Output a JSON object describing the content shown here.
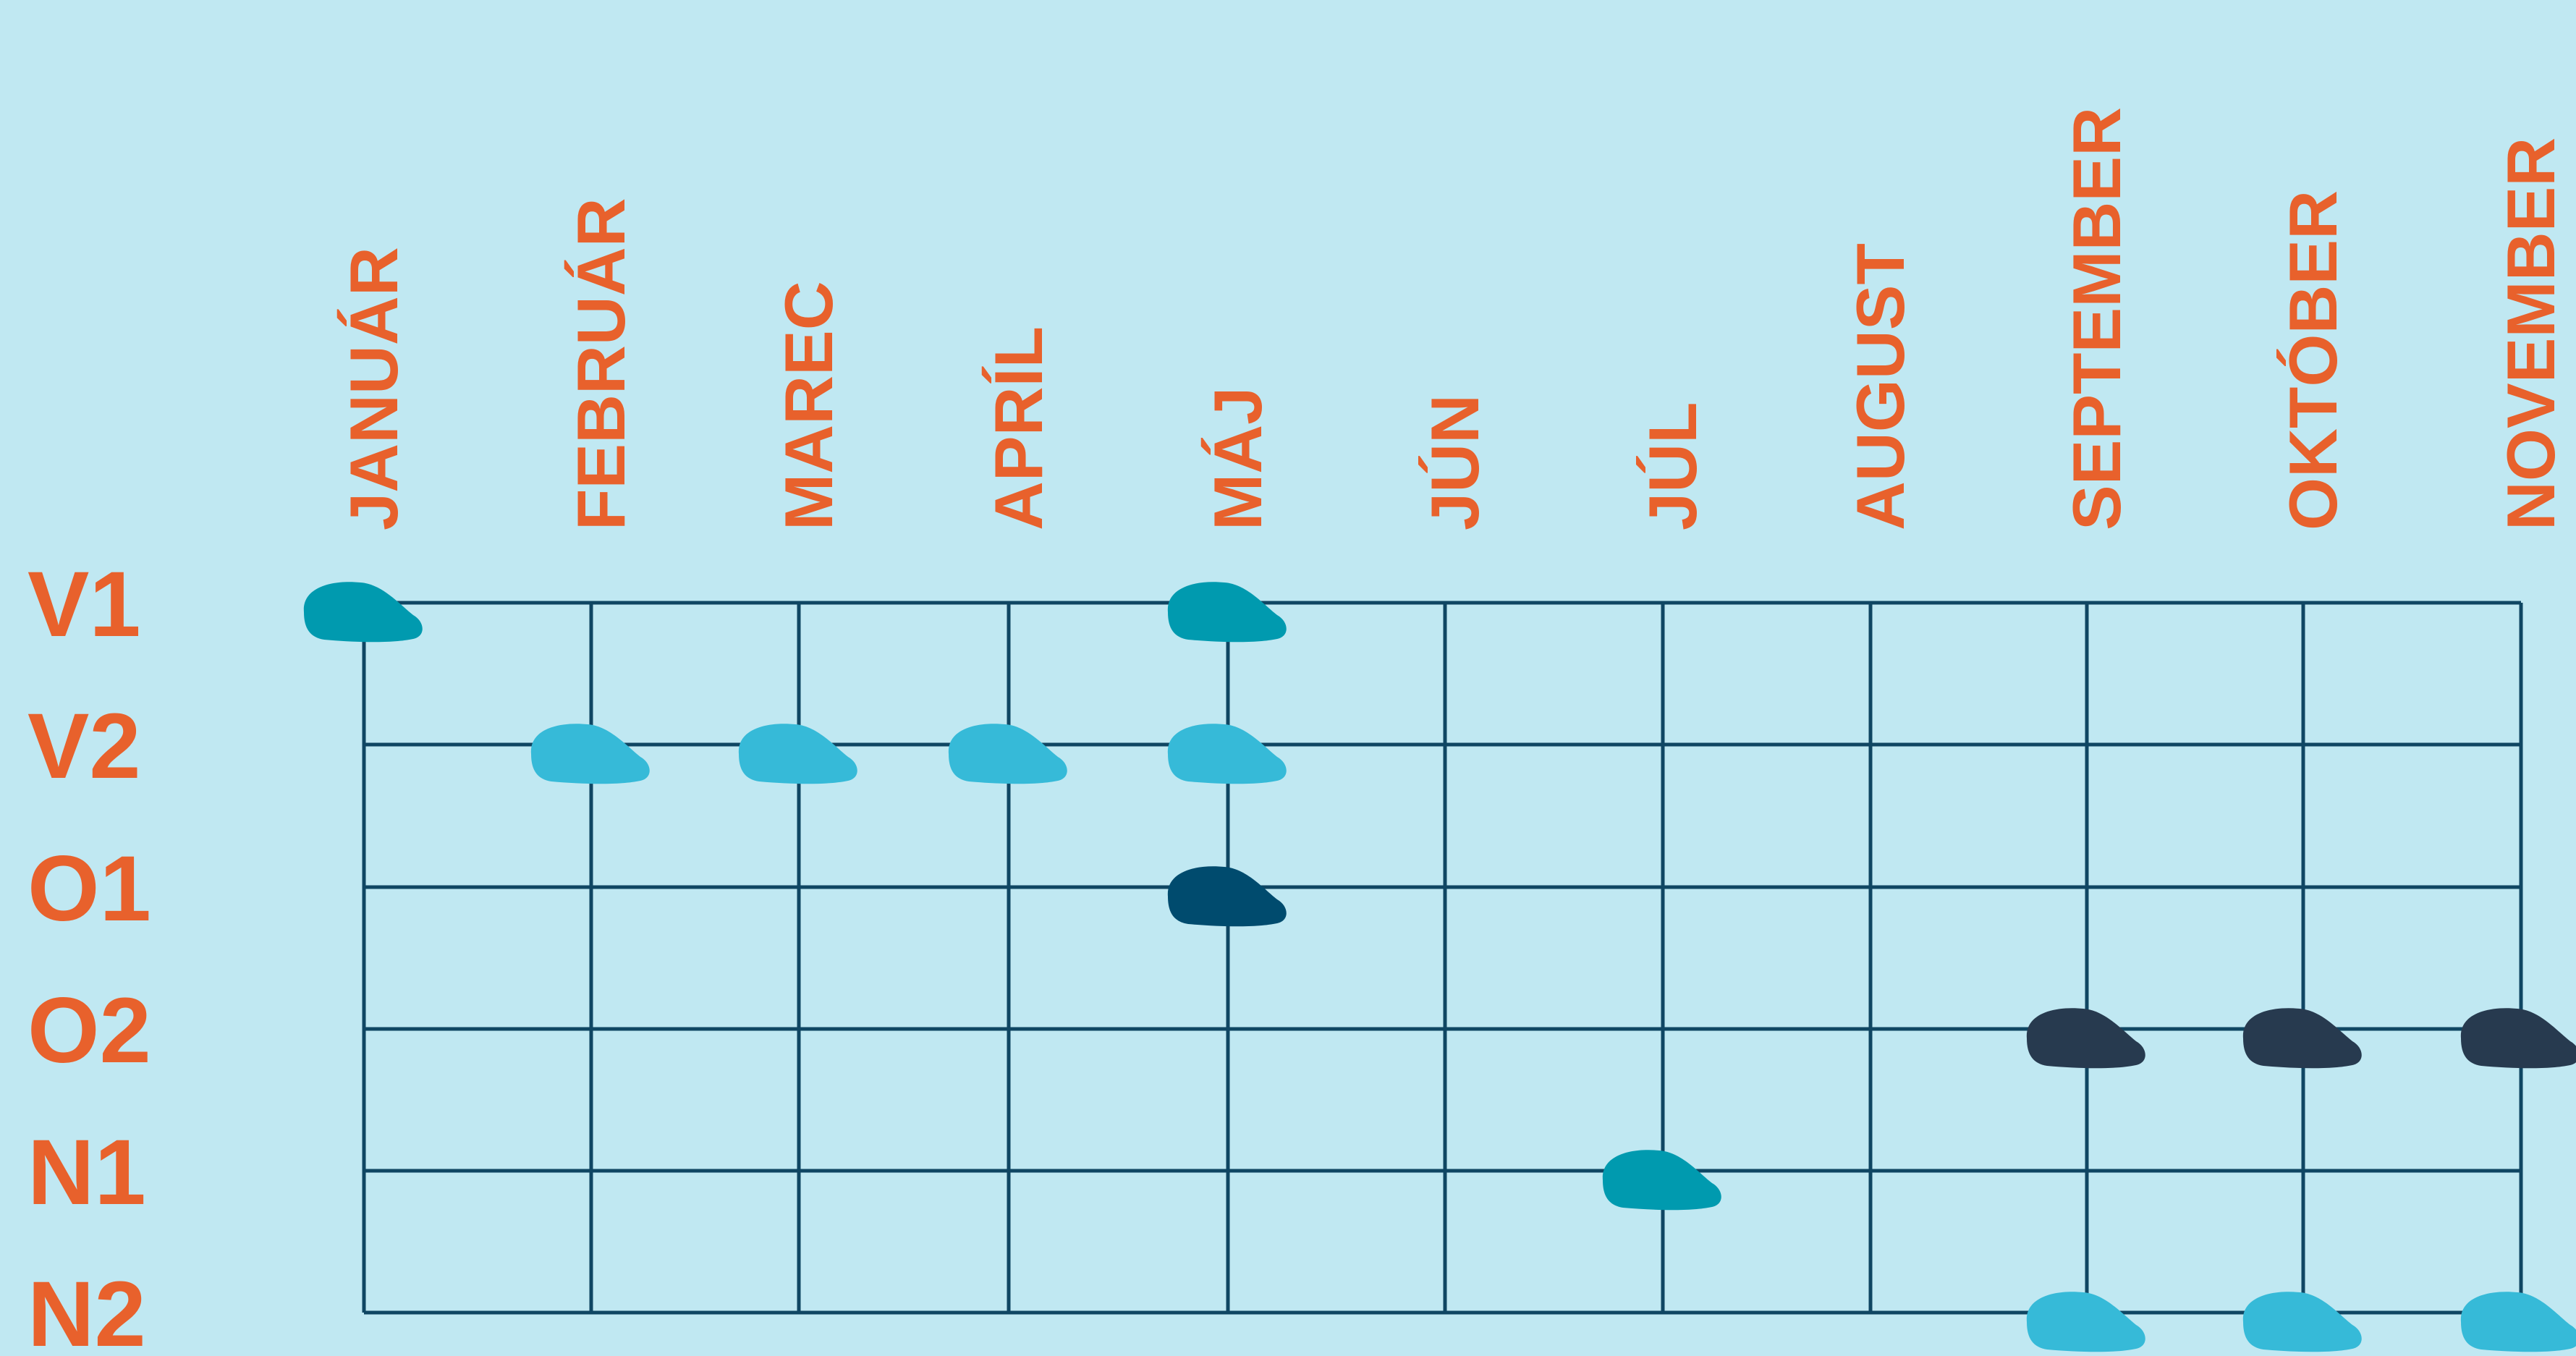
{
  "chart_data": {
    "type": "table",
    "months": [
      "JANUÁR",
      "FEBRUÁR",
      "MAREC",
      "APRÍL",
      "MÁJ",
      "JÚN",
      "JÚL",
      "AUGUST",
      "SEPTEMBER",
      "OKTÓBER",
      "NOVEMBER"
    ],
    "rows": [
      "V1",
      "V2",
      "O1",
      "O2",
      "N1",
      "N2"
    ],
    "marks": [
      {
        "row": "V1",
        "month": "JANUÁR",
        "color": "#009aaf"
      },
      {
        "row": "V1",
        "month": "MÁJ",
        "color": "#009aaf"
      },
      {
        "row": "V2",
        "month": "FEBRUÁR",
        "color": "#36bad8"
      },
      {
        "row": "V2",
        "month": "MAREC",
        "color": "#36bad8"
      },
      {
        "row": "V2",
        "month": "APRÍL",
        "color": "#36bad8"
      },
      {
        "row": "V2",
        "month": "MÁJ",
        "color": "#36bad8"
      },
      {
        "row": "O1",
        "month": "MÁJ",
        "color": "#004b6e"
      },
      {
        "row": "O2",
        "month": "SEPTEMBER",
        "color": "#273a4f"
      },
      {
        "row": "O2",
        "month": "OKTÓBER",
        "color": "#273a4f"
      },
      {
        "row": "O2",
        "month": "NOVEMBER",
        "color": "#273a4f"
      },
      {
        "row": "N1",
        "month": "JÚL",
        "color": "#009aaf"
      },
      {
        "row": "N2",
        "month": "SEPTEMBER",
        "color": "#36bad8"
      },
      {
        "row": "N2",
        "month": "OKTÓBER",
        "color": "#36bad8"
      },
      {
        "row": "N2",
        "month": "NOVEMBER",
        "color": "#36bad8"
      }
    ]
  },
  "colors": {
    "background": "#c0e8f2",
    "label": "#e8612c",
    "grid": "#0f4663"
  }
}
